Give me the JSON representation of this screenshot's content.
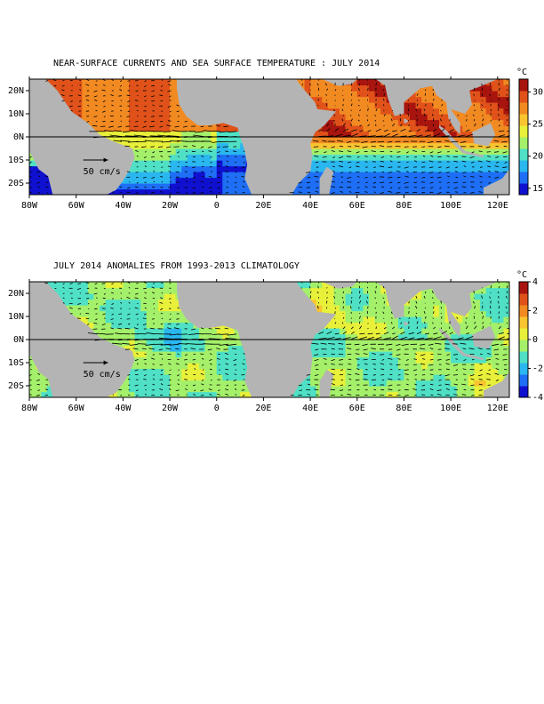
{
  "chart_data": [
    {
      "type": "heatmap",
      "subtype": "map-with-vectors",
      "title": "NEAR-SURFACE CURRENTS AND SEA SURFACE TEMPERATURE : JULY 2014",
      "x_ticks": [
        "80W",
        "60W",
        "40W",
        "20W",
        "0",
        "20E",
        "40E",
        "60E",
        "80E",
        "100E",
        "120E"
      ],
      "x_range": [
        -80,
        125
      ],
      "y_ticks": [
        "20N",
        "10N",
        "0N",
        "10S",
        "20S"
      ],
      "y_range": [
        -25,
        25
      ],
      "colorbar": {
        "unit": "°C",
        "ticks": [
          "30",
          "25",
          "20",
          "15"
        ],
        "range": [
          14,
          32
        ],
        "colors": [
          "#1010d0",
          "#1e6ff5",
          "#2ab7ef",
          "#4fe0c6",
          "#a4f06a",
          "#e8f03a",
          "#f8c430",
          "#f28a22",
          "#e0521a",
          "#a8140e"
        ]
      },
      "reference_vector": "50 cm/s",
      "zero_line": "equator",
      "land_color": "#b4b4b4"
    },
    {
      "type": "heatmap",
      "subtype": "map-with-vectors",
      "title": "JULY 2014 ANOMALIES FROM 1993-2013 CLIMATOLOGY",
      "x_ticks": [
        "80W",
        "60W",
        "40W",
        "20W",
        "0",
        "20E",
        "40E",
        "60E",
        "80E",
        "100E",
        "120E"
      ],
      "x_range": [
        -80,
        125
      ],
      "y_ticks": [
        "20N",
        "10N",
        "0N",
        "10S",
        "20S"
      ],
      "y_range": [
        -25,
        25
      ],
      "colorbar": {
        "unit": "°C",
        "ticks": [
          "4",
          "2",
          "0",
          "-2",
          "-4"
        ],
        "range": [
          -4,
          4
        ],
        "colors": [
          "#1010d0",
          "#1e6ff5",
          "#2ab7ef",
          "#4fe0c6",
          "#a4f06a",
          "#e8f03a",
          "#f8c430",
          "#f28a22",
          "#e0521a",
          "#a8140e"
        ]
      },
      "reference_vector": "50 cm/s",
      "zero_line": "equator",
      "land_color": "#b4b4b4"
    }
  ]
}
